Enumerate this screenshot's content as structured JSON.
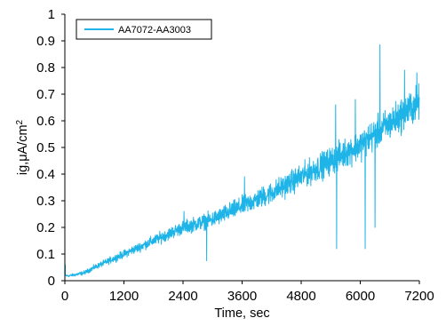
{
  "chart_data": {
    "type": "line",
    "title": "",
    "xlabel": "Time, sec",
    "ylabel_base": "ig,μA/cm",
    "ylabel_sup": "2",
    "xlim": [
      0,
      7200
    ],
    "ylim": [
      0,
      1
    ],
    "xticks": [
      0,
      1200,
      2400,
      3600,
      4800,
      6000,
      7200
    ],
    "yticks": [
      0,
      0.1,
      0.2,
      0.3,
      0.4,
      0.5,
      0.6,
      0.7,
      0.8,
      0.9,
      1
    ],
    "grid": false,
    "legend_position": "top-left",
    "series": [
      {
        "name": "AA7072-AA3003",
        "color": "#1EB4E8",
        "trend": {
          "x": [
            0,
            60,
            200,
            400,
            600,
            900,
            1200,
            1500,
            1800,
            2100,
            2400,
            2700,
            3000,
            3300,
            3600,
            3900,
            4200,
            4500,
            4800,
            5100,
            5400,
            5700,
            6000,
            6300,
            6600,
            6900,
            7200
          ],
          "y": [
            0.02,
            0.018,
            0.022,
            0.03,
            0.05,
            0.075,
            0.1,
            0.125,
            0.15,
            0.175,
            0.2,
            0.215,
            0.23,
            0.255,
            0.28,
            0.305,
            0.33,
            0.36,
            0.39,
            0.42,
            0.45,
            0.48,
            0.51,
            0.55,
            0.59,
            0.63,
            0.67
          ]
        },
        "spikes": [
          {
            "x": 2880,
            "y": 0.075
          },
          {
            "x": 2420,
            "y": 0.26
          },
          {
            "x": 3650,
            "y": 0.39
          },
          {
            "x": 5500,
            "y": 0.66
          },
          {
            "x": 5900,
            "y": 0.68
          },
          {
            "x": 5520,
            "y": 0.12
          },
          {
            "x": 6100,
            "y": 0.12
          },
          {
            "x": 6300,
            "y": 0.2
          },
          {
            "x": 6400,
            "y": 0.885
          },
          {
            "x": 6900,
            "y": 0.79
          },
          {
            "x": 7150,
            "y": 0.78
          }
        ]
      }
    ]
  }
}
